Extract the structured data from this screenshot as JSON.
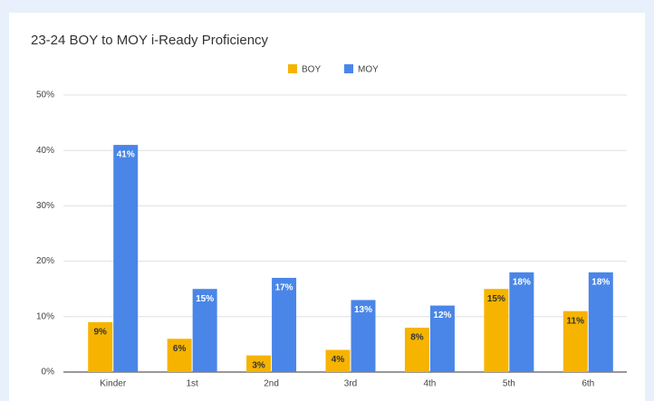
{
  "chart_data": {
    "type": "bar",
    "title": "23-24 BOY to MOY i-Ready Proficiency",
    "categories": [
      "Kinder",
      "1st",
      "2nd",
      "3rd",
      "4th",
      "5th",
      "6th"
    ],
    "series": [
      {
        "name": "BOY",
        "color": "#f6b400",
        "values": [
          9,
          6,
          3,
          4,
          8,
          15,
          11
        ],
        "value_labels": [
          "9%",
          "6%",
          "3%",
          "4%",
          "8%",
          "15%",
          "11%"
        ]
      },
      {
        "name": "MOY",
        "color": "#4a86e8",
        "values": [
          41,
          15,
          17,
          13,
          12,
          18,
          18
        ],
        "value_labels": [
          "41%",
          "15%",
          "17%",
          "13%",
          "12%",
          "18%",
          "18%"
        ]
      }
    ],
    "ylim": [
      0,
      50
    ],
    "yticks": [
      {
        "value": 0,
        "label": "0%"
      },
      {
        "value": 10,
        "label": "10%"
      },
      {
        "value": 20,
        "label": "20%"
      },
      {
        "value": 30,
        "label": "30%"
      },
      {
        "value": 40,
        "label": "40%"
      },
      {
        "value": 50,
        "label": "50%"
      }
    ],
    "grid": true,
    "legend": "top"
  }
}
